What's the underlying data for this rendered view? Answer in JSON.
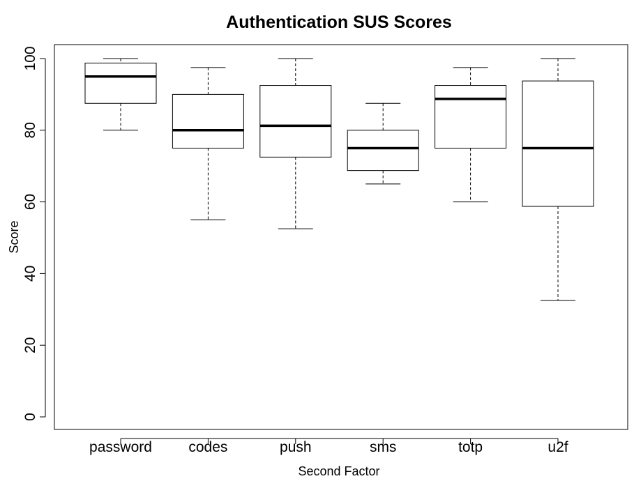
{
  "chart_data": {
    "type": "box",
    "title": "Authentication SUS Scores",
    "xlabel": "Second Factor",
    "ylabel": "Score",
    "ylim": [
      0,
      100
    ],
    "yticks": [
      0,
      20,
      40,
      60,
      80,
      100
    ],
    "categories": [
      "password",
      "codes",
      "push",
      "sms",
      "totp",
      "u2f"
    ],
    "boxes": [
      {
        "min": 80,
        "q1": 87.5,
        "median": 95,
        "q3": 98.75,
        "max": 100
      },
      {
        "min": 55,
        "q1": 75,
        "median": 80,
        "q3": 90,
        "max": 97.5
      },
      {
        "min": 52.5,
        "q1": 72.5,
        "median": 81.25,
        "q3": 92.5,
        "max": 100
      },
      {
        "min": 65,
        "q1": 68.75,
        "median": 75,
        "q3": 80,
        "max": 87.5
      },
      {
        "min": 60,
        "q1": 75,
        "median": 88.75,
        "q3": 92.5,
        "max": 97.5
      },
      {
        "min": 32.5,
        "q1": 58.75,
        "median": 75,
        "q3": 93.75,
        "max": 100
      }
    ],
    "grid": false,
    "legend": "none"
  }
}
